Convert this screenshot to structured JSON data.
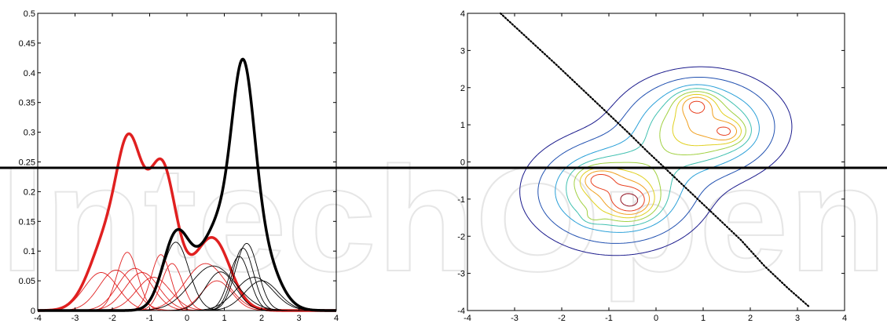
{
  "watermark_text": "IntechOpen",
  "horizontal_line_color": "#000000",
  "chart_data": [
    {
      "type": "line",
      "title": "",
      "xlabel": "",
      "ylabel": "",
      "xlim": [
        -4,
        4
      ],
      "ylim": [
        0,
        0.5
      ],
      "xticks": [
        -4,
        -3,
        -2,
        -1,
        0,
        1,
        2,
        3,
        4
      ],
      "yticks": [
        0,
        0.05,
        0.1,
        0.15,
        0.2,
        0.25,
        0.3,
        0.35,
        0.4,
        0.45,
        0.5
      ],
      "grid": false,
      "mixtures": [
        {
          "color": "#e02020",
          "components": [
            {
              "mu": -2.3,
              "sigma": 0.45,
              "weight": 0.064
            },
            {
              "mu": -1.9,
              "sigma": 0.45,
              "weight": 0.068
            },
            {
              "mu": -1.6,
              "sigma": 0.28,
              "weight": 0.098
            },
            {
              "mu": -1.4,
              "sigma": 0.45,
              "weight": 0.071
            },
            {
              "mu": -1.2,
              "sigma": 0.45,
              "weight": 0.064
            },
            {
              "mu": -0.9,
              "sigma": 0.45,
              "weight": 0.056
            },
            {
              "mu": -0.7,
              "sigma": 0.26,
              "weight": 0.094
            },
            {
              "mu": -0.4,
              "sigma": 0.28,
              "weight": 0.079
            },
            {
              "mu": 0.5,
              "sigma": 0.55,
              "weight": 0.079
            },
            {
              "mu": 0.8,
              "sigma": 0.4,
              "weight": 0.05
            }
          ]
        },
        {
          "color": "#000000",
          "components": [
            {
              "mu": -0.3,
              "sigma": 0.35,
              "weight": 0.115
            },
            {
              "mu": 0.7,
              "sigma": 0.6,
              "weight": 0.075
            },
            {
              "mu": 0.9,
              "sigma": 0.4,
              "weight": 0.065
            },
            {
              "mu": 1.4,
              "sigma": 0.28,
              "weight": 0.091
            },
            {
              "mu": 1.5,
              "sigma": 0.28,
              "weight": 0.105
            },
            {
              "mu": 1.6,
              "sigma": 0.3,
              "weight": 0.113
            },
            {
              "mu": 1.8,
              "sigma": 0.5,
              "weight": 0.056
            },
            {
              "mu": 2.0,
              "sigma": 0.45,
              "weight": 0.05
            }
          ]
        }
      ]
    },
    {
      "type": "contour",
      "title": "",
      "xlabel": "",
      "ylabel": "",
      "xlim": [
        -4,
        4
      ],
      "ylim": [
        -4,
        4
      ],
      "xticks": [
        -4,
        -3,
        -2,
        -1,
        0,
        1,
        2,
        3,
        4
      ],
      "yticks": [
        -4,
        -3,
        -2,
        -1,
        0,
        1,
        2,
        3,
        4
      ],
      "grid": false,
      "blobs": [
        {
          "cx": 0.95,
          "cy": 0.95,
          "sx": 0.9,
          "sy": 0.75,
          "w": 1.0
        },
        {
          "cx": 0.85,
          "cy": 1.6,
          "sx": 0.3,
          "sy": 0.25,
          "w": 0.5
        },
        {
          "cx": 1.55,
          "cy": 0.8,
          "sx": 0.25,
          "sy": 0.22,
          "w": 0.38
        },
        {
          "cx": -0.85,
          "cy": -0.8,
          "sx": 0.95,
          "sy": 0.8,
          "w": 1.0
        },
        {
          "cx": -0.5,
          "cy": -1.1,
          "sx": 0.32,
          "sy": 0.3,
          "w": 0.5
        },
        {
          "cx": -1.25,
          "cy": -0.45,
          "sx": 0.28,
          "sy": 0.22,
          "w": 0.4
        },
        {
          "cx": -1.35,
          "cy": -1.5,
          "sx": 0.15,
          "sy": 0.12,
          "w": 0.15
        }
      ],
      "contour_levels": [
        0.1,
        0.22,
        0.4,
        0.55,
        0.7,
        0.85,
        1.0,
        1.15,
        1.32
      ],
      "contour_colors": [
        "#1a1a8c",
        "#2050b0",
        "#2aa0d8",
        "#40c0b0",
        "#a0d040",
        "#e0d020",
        "#f0a020",
        "#e84020",
        "#901020"
      ],
      "decision_boundary": {
        "color": "#000000",
        "x": [
          -3.3,
          -2.7,
          -2.1,
          -1.6,
          -1.1,
          -0.6,
          -0.2,
          0.3,
          0.8,
          1.3,
          1.8,
          2.3,
          2.8,
          3.25
        ],
        "y": [
          4.0,
          3.3,
          2.6,
          2.0,
          1.4,
          0.8,
          0.3,
          -0.3,
          -0.9,
          -1.5,
          -2.1,
          -2.8,
          -3.4,
          -3.9
        ]
      }
    }
  ]
}
